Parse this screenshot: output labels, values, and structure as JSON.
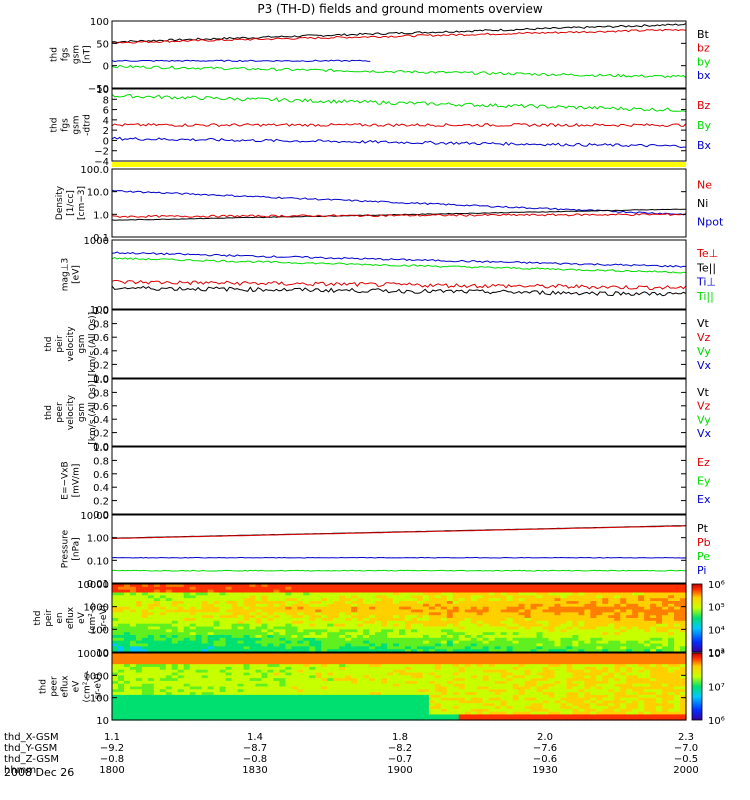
{
  "title": "P3 (TH-D) fields and ground moments overview",
  "date": "2008 Dec 26",
  "colors": {
    "black": "#000000",
    "red": "#dd0000",
    "green": "#00dd00",
    "blue": "#0000cc",
    "yellow": "#ffff00"
  },
  "chart_data": [
    {
      "type": "line",
      "id": "fgs",
      "ylabel": [
        "thd",
        "fgs",
        "gsm",
        "[nT]"
      ],
      "yticks": [
        "100",
        "50",
        "0",
        "−50"
      ],
      "ylim": [
        -75,
        105
      ],
      "legend": [
        {
          "name": "Bt",
          "color": "#000000"
        },
        {
          "name": "bz",
          "color": "#dd0000"
        },
        {
          "name": "by",
          "color": "#00dd00"
        },
        {
          "name": "bx",
          "color": "#0000cc"
        }
      ],
      "series": [
        {
          "name": "Bt",
          "color": "#000000",
          "start": 49,
          "end": 96,
          "noise": 0.3
        },
        {
          "name": "bz",
          "color": "#dd0000",
          "start": 47,
          "end": 82,
          "noise": 0.3
        },
        {
          "name": "by",
          "color": "#00dd00",
          "start": -17,
          "end": -45,
          "noise": 0.4
        },
        {
          "name": "bx",
          "color": "#0000cc",
          "start": -2,
          "end": -2,
          "noise": 0.2,
          "stop": 0.45
        }
      ]
    },
    {
      "type": "line",
      "id": "fgs_detrend",
      "ylabel": [
        "thd",
        "fgs",
        "gsm",
        "-dtrd"
      ],
      "yticks": [
        "10",
        "8",
        "6",
        "4",
        "2",
        "0",
        "−2",
        "−4"
      ],
      "ylim": [
        -5.5,
        10.5
      ],
      "legend": [
        {
          "name": "Bz",
          "color": "#dd0000"
        },
        {
          "name": "By",
          "color": "#00dd00"
        },
        {
          "name": "Bx",
          "color": "#0000cc"
        }
      ],
      "series": [
        {
          "name": "By",
          "color": "#00dd00",
          "start": 9,
          "end": 5.8,
          "noise": 0.5
        },
        {
          "name": "Bz",
          "color": "#dd0000",
          "start": 2.5,
          "end": 2.5,
          "noise": 0.4
        },
        {
          "name": "Bx",
          "color": "#0000cc",
          "start": -0.5,
          "end": -2.2,
          "noise": 0.4
        }
      ],
      "yellow_bar": true
    },
    {
      "type": "line",
      "id": "density",
      "ylabel": [
        "Density",
        "[1/cc]",
        "[cm−3]"
      ],
      "yticks": [
        "100.0",
        "10.0",
        "1.0",
        "0.1"
      ],
      "yscale": "log",
      "ylim": [
        0.1,
        100
      ],
      "legend": [
        {
          "name": "Ne",
          "color": "#dd0000"
        },
        {
          "name": "Ni",
          "color": "#000000"
        },
        {
          "name": "Npot",
          "color": "#0000cc"
        }
      ],
      "series": [
        {
          "name": "Npot",
          "color": "#0000cc",
          "start": 11,
          "end": 1.0,
          "noise": 0.08
        },
        {
          "name": "Ni",
          "color": "#000000",
          "start": 0.55,
          "end": 1.7,
          "noise": 0.03
        },
        {
          "name": "Ne",
          "color": "#dd0000",
          "start": 0.8,
          "end": 1.0,
          "noise": 0.1
        }
      ]
    },
    {
      "type": "line",
      "id": "temperature",
      "ylabel": [
        "mag⊥3",
        "[eV]"
      ],
      "yticks": [
        "1000",
        "100"
      ],
      "yscale": "log",
      "ylim": [
        90,
        4500
      ],
      "legend": [
        {
          "name": "Te⊥",
          "color": "#dd0000"
        },
        {
          "name": "Te||",
          "color": "#000000"
        },
        {
          "name": "Ti⊥",
          "color": "#0000cc"
        },
        {
          "name": "Ti||",
          "color": "#00dd00"
        }
      ],
      "series": [
        {
          "name": "Ti⊥",
          "color": "#0000cc",
          "start": 2200,
          "end": 1000,
          "noise": 0.05
        },
        {
          "name": "Ti||",
          "color": "#00dd00",
          "start": 1600,
          "end": 720,
          "noise": 0.05
        },
        {
          "name": "Te⊥",
          "color": "#dd0000",
          "start": 420,
          "end": 300,
          "noise": 0.12
        },
        {
          "name": "Te||",
          "color": "#000000",
          "start": 300,
          "end": 210,
          "noise": 0.12
        }
      ]
    },
    {
      "type": "line",
      "id": "peir_velocity",
      "ylabel": [
        "thd",
        "peir",
        "velocity",
        "gsm",
        "[km/s (All Qs)]"
      ],
      "yticks": [
        "1.0",
        "0.8",
        "0.6",
        "0.4",
        "0.2",
        "0.0"
      ],
      "ylim": [
        0,
        1
      ],
      "legend": [
        {
          "name": "Vt",
          "color": "#000000"
        },
        {
          "name": "Vz",
          "color": "#dd0000"
        },
        {
          "name": "Vy",
          "color": "#00dd00"
        },
        {
          "name": "Vx",
          "color": "#0000cc"
        }
      ],
      "series": []
    },
    {
      "type": "line",
      "id": "peer_velocity",
      "ylabel": [
        "thd",
        "peer",
        "velocity",
        "gsm",
        "[km/s (All Qs)]"
      ],
      "yticks": [
        "1.0",
        "0.8",
        "0.6",
        "0.4",
        "0.2",
        "0.0"
      ],
      "ylim": [
        0,
        1
      ],
      "legend": [
        {
          "name": "Vt",
          "color": "#000000"
        },
        {
          "name": "Vz",
          "color": "#dd0000"
        },
        {
          "name": "Vy",
          "color": "#00dd00"
        },
        {
          "name": "Vx",
          "color": "#0000cc"
        }
      ],
      "series": []
    },
    {
      "type": "line",
      "id": "efield",
      "ylabel": [
        "E=−VxB",
        "[mV/m]"
      ],
      "yticks": [
        "1.0",
        "0.8",
        "0.6",
        "0.4",
        "0.2",
        "0.0"
      ],
      "ylim": [
        0,
        1
      ],
      "legend": [
        {
          "name": "Ez",
          "color": "#dd0000"
        },
        {
          "name": "Ey",
          "color": "#00dd00"
        },
        {
          "name": "Ex",
          "color": "#0000cc"
        }
      ],
      "series": []
    },
    {
      "type": "line",
      "id": "pressure",
      "ylabel": [
        "Pressure",
        "[nPa]"
      ],
      "yticks": [
        "10.00",
        "1.00",
        "0.10",
        "0.01"
      ],
      "yscale": "log",
      "ylim": [
        0.01,
        10
      ],
      "legend": [
        {
          "name": "Pt",
          "color": "#000000"
        },
        {
          "name": "Pb",
          "color": "#dd0000"
        },
        {
          "name": "Pe",
          "color": "#00dd00"
        },
        {
          "name": "Pi",
          "color": "#0000cc"
        }
      ],
      "series": [
        {
          "name": "Pt",
          "color": "#000000",
          "start": 0.95,
          "end": 3.4,
          "noise": 0.01
        },
        {
          "name": "Pb",
          "color": "#dd0000",
          "start": 0.92,
          "end": 3.3,
          "noise": 0.01
        },
        {
          "name": "Pi",
          "color": "#0000cc",
          "start": 0.13,
          "end": 0.13,
          "noise": 0.03
        },
        {
          "name": "Pe",
          "color": "#00dd00",
          "start": 0.035,
          "end": 0.035,
          "noise": 0.04
        }
      ]
    },
    {
      "type": "heatmap",
      "id": "peir_spectrogram",
      "ylabel": [
        "thd",
        "peir",
        "en",
        "eflux",
        "eV",
        "(cm²-s-",
        "sr-eV)"
      ],
      "yticks": [
        "10000",
        "1000",
        "100",
        "10"
      ],
      "yscale": "log",
      "ylim": [
        7,
        25000
      ],
      "colorbar_ticks": [
        "10⁶",
        "10⁵",
        "10⁴",
        "10³"
      ],
      "colorbar_range": [
        1000,
        1000000
      ]
    },
    {
      "type": "heatmap",
      "id": "peer_spectrogram",
      "ylabel": [
        "thd",
        "peer",
        "eflux",
        "eV",
        "(cm²-s-",
        "sr-eV)"
      ],
      "yticks": [
        "10000",
        "1000",
        "100",
        "10"
      ],
      "yscale": "log",
      "ylim": [
        7,
        25000
      ],
      "colorbar_ticks": [
        "10⁸",
        "10⁷",
        "10⁶"
      ],
      "colorbar_range": [
        300000,
        100000000
      ]
    }
  ],
  "x_axis": {
    "rows": [
      {
        "label": "thd_X-GSM",
        "values": [
          "1.1",
          "1.4",
          "1.8",
          "2.0",
          "2.3"
        ]
      },
      {
        "label": "thd_Y-GSM",
        "values": [
          "−9.2",
          "−8.7",
          "−8.2",
          "−7.6",
          "−7.0"
        ]
      },
      {
        "label": "thd_Z-GSM",
        "values": [
          "−0.8",
          "−0.8",
          "−0.7",
          "−0.6",
          "−0.5"
        ]
      },
      {
        "label": "hhmm",
        "values": [
          "1800",
          "1830",
          "1900",
          "1930",
          "2000"
        ]
      }
    ]
  }
}
